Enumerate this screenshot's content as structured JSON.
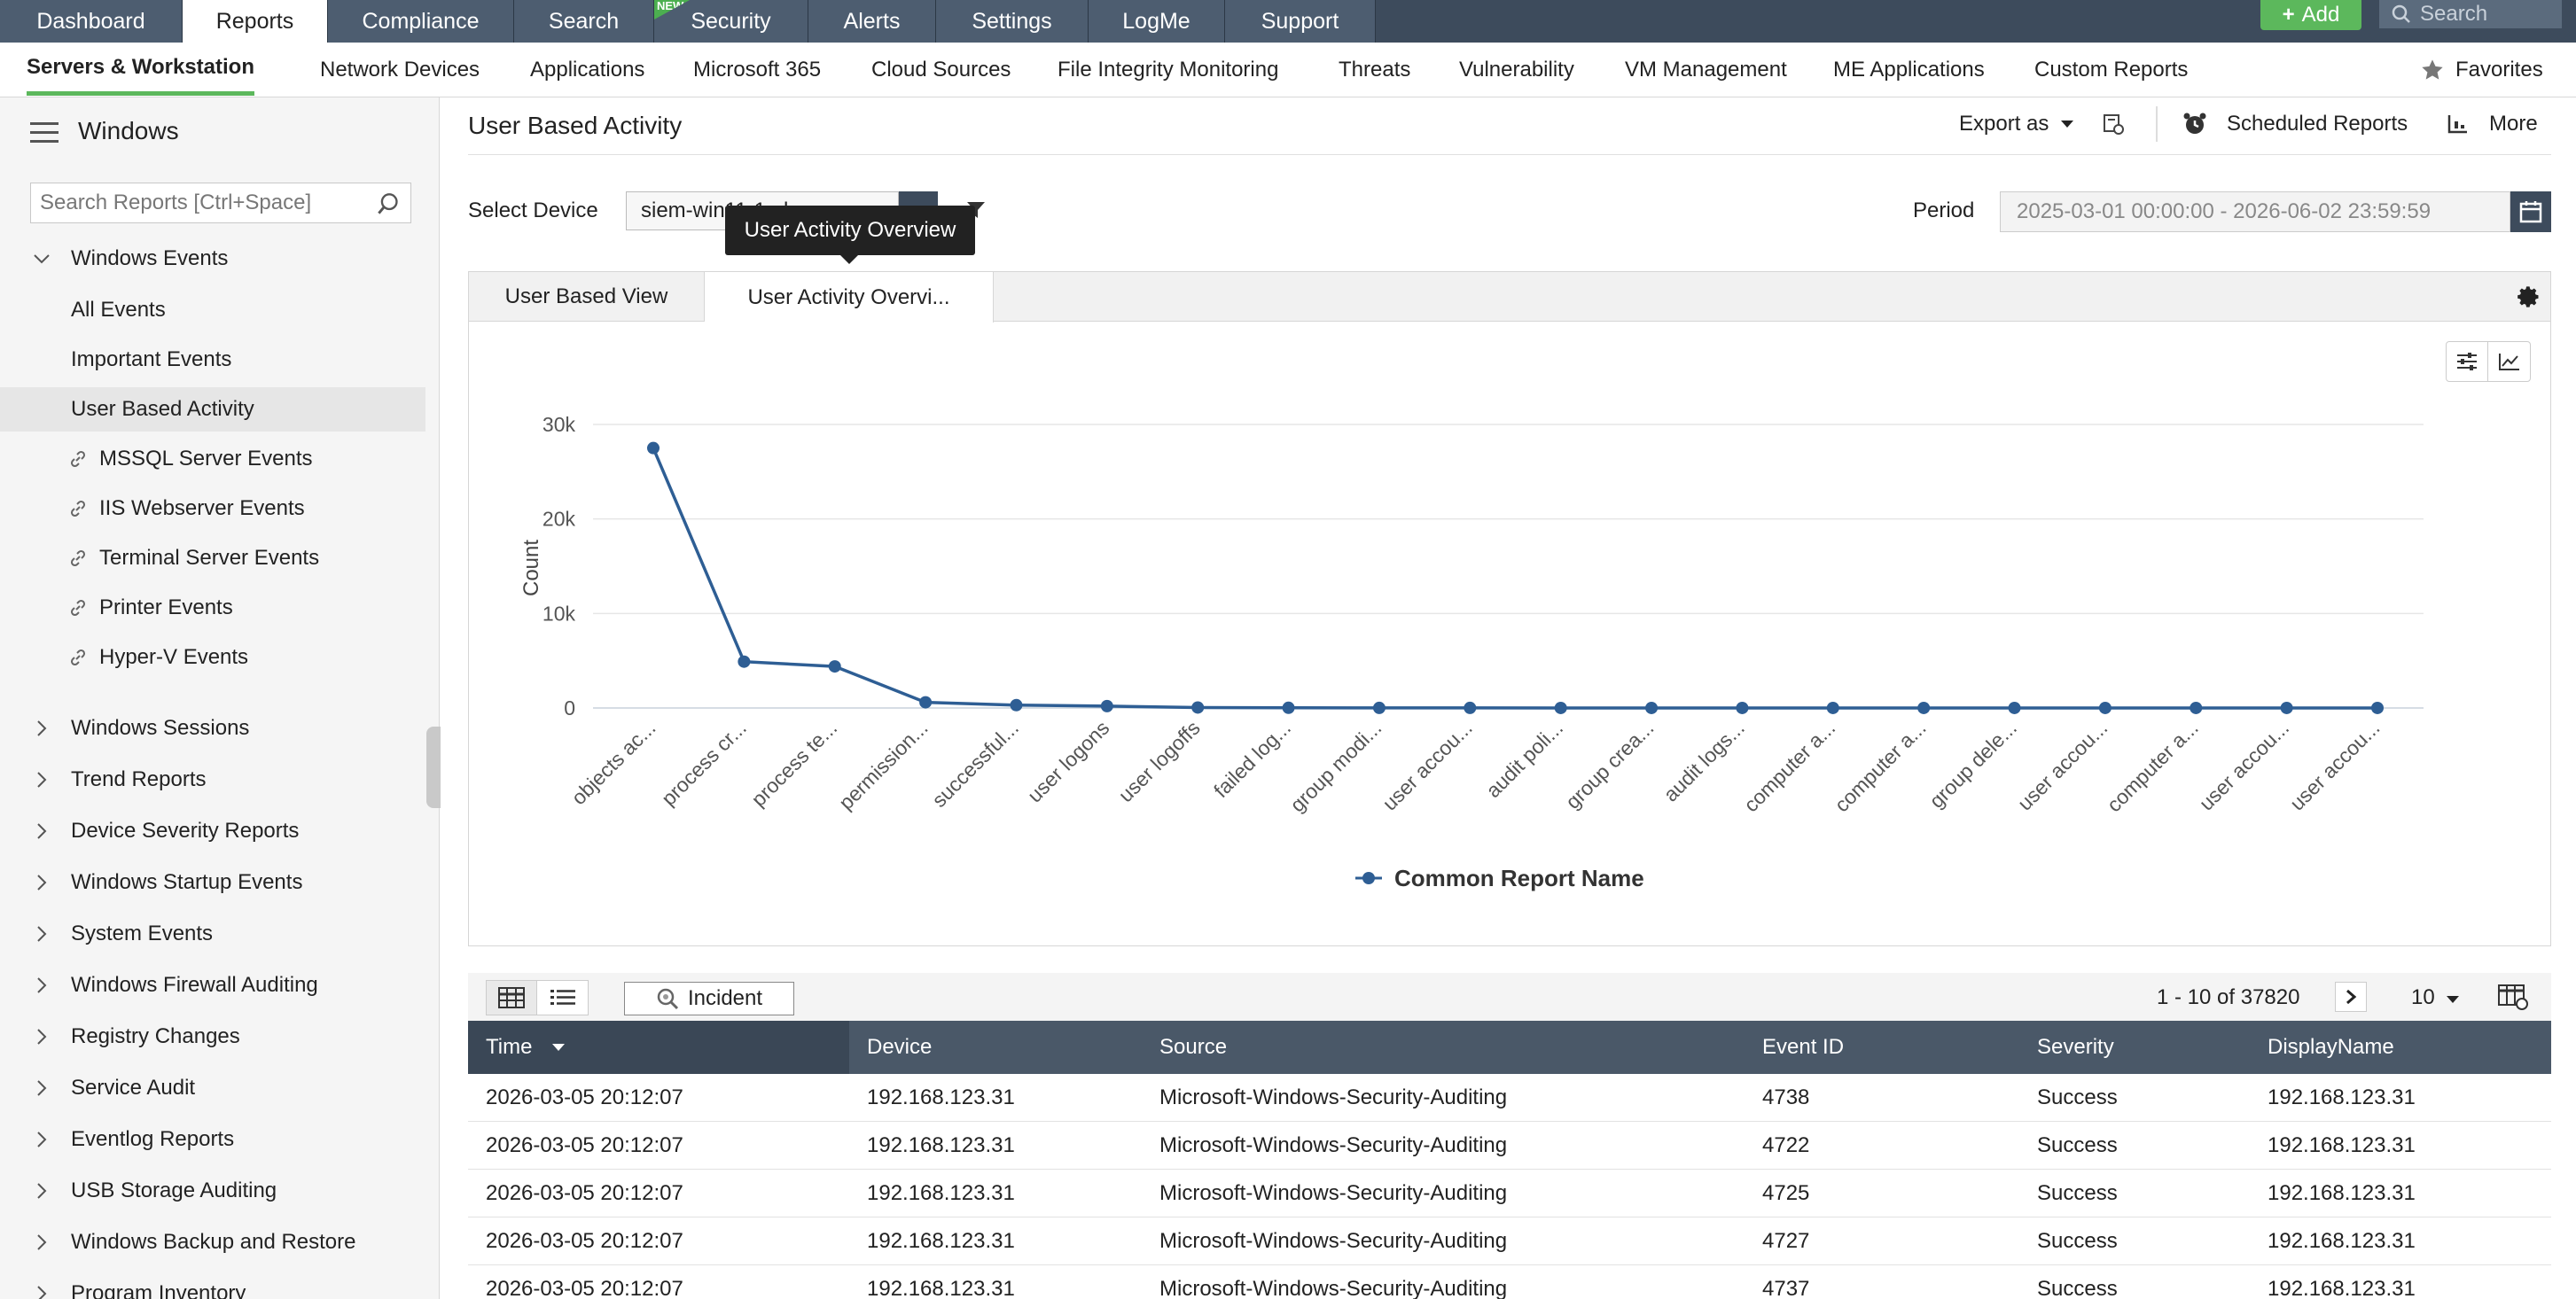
{
  "topnav": {
    "tabs": [
      {
        "label": "Dashboard"
      },
      {
        "label": "Reports"
      },
      {
        "label": "Compliance"
      },
      {
        "label": "Search"
      },
      {
        "label": "Security",
        "badge": "NEW"
      },
      {
        "label": "Alerts"
      },
      {
        "label": "Settings"
      },
      {
        "label": "LogMe"
      },
      {
        "label": "Support"
      }
    ],
    "active_tab": "Reports",
    "add_label": "Add",
    "search_placeholder": "Search"
  },
  "subnav": {
    "items": [
      "Servers & Workstation",
      "Network Devices",
      "Applications",
      "Microsoft 365",
      "Cloud Sources",
      "File Integrity Monitoring",
      "Threats",
      "Vulnerability",
      "VM Management",
      "ME Applications",
      "Custom Reports"
    ],
    "favorites_label": "Favorites"
  },
  "sidebar": {
    "title": "Windows",
    "search_placeholder": "Search Reports [Ctrl+Space]",
    "expanded_group": "Windows Events",
    "children": [
      {
        "label": "All Events",
        "link": false
      },
      {
        "label": "Important Events",
        "link": false
      },
      {
        "label": "User Based Activity",
        "link": false,
        "selected": true
      },
      {
        "label": "MSSQL Server Events",
        "link": true
      },
      {
        "label": "IIS Webserver Events",
        "link": true
      },
      {
        "label": "Terminal Server Events",
        "link": true
      },
      {
        "label": "Printer Events",
        "link": true
      },
      {
        "label": "Hyper-V Events",
        "link": true
      }
    ],
    "groups": [
      "Windows Sessions",
      "Trend Reports",
      "Device Severity Reports",
      "Windows Startup Events",
      "System Events",
      "Windows Firewall Auditing",
      "Registry Changes",
      "Service Audit",
      "Eventlog Reports",
      "USB Storage Auditing",
      "Windows Backup and Restore",
      "Program Inventory"
    ]
  },
  "main": {
    "title": "User Based Activity",
    "export_label": "Export as",
    "scheduled_label": "Scheduled Reports",
    "more_label": "More",
    "device_label": "Select Device",
    "device_value": "siem-win11-1.alnsw...",
    "tooltip": "User Activity Overview",
    "period_label": "Period",
    "period_value": "2025-03-01 00:00:00 - 2026-06-02 23:59:59",
    "tabs": [
      "User Based View",
      "User Activity Overvi..."
    ]
  },
  "chart_data": {
    "type": "line",
    "ylabel": "Count",
    "ylim": [
      0,
      30000
    ],
    "yticks": [
      "0",
      "10k",
      "20k",
      "30k"
    ],
    "categories": [
      "objects ac...",
      "process cr...",
      "process te...",
      "permission...",
      "successful...",
      "user logons",
      "user logoffs",
      "failed log...",
      "group modi...",
      "user accou...",
      "audit poli...",
      "group crea...",
      "audit logs...",
      "computer a...",
      "computer a...",
      "group dele...",
      "user accou...",
      "computer a...",
      "user accou...",
      "user accou..."
    ],
    "series": [
      {
        "name": "Common Report Name",
        "values": [
          27500,
          4900,
          4400,
          600,
          300,
          200,
          50,
          20,
          10,
          10,
          5,
          5,
          5,
          5,
          5,
          5,
          5,
          5,
          5,
          5
        ]
      }
    ],
    "color": "#2e5e94",
    "grid": true,
    "legend": "bottom-center"
  },
  "grid": {
    "incident_label": "Incident",
    "pager": "1 - 10 of 37820",
    "per_page": "10",
    "columns": [
      "Time",
      "Device",
      "Source",
      "Event ID",
      "Severity",
      "DisplayName"
    ],
    "rows": [
      [
        "2026-03-05 20:12:07",
        "192.168.123.31",
        "Microsoft-Windows-Security-Auditing",
        "4738",
        "Success",
        "192.168.123.31"
      ],
      [
        "2026-03-05 20:12:07",
        "192.168.123.31",
        "Microsoft-Windows-Security-Auditing",
        "4722",
        "Success",
        "192.168.123.31"
      ],
      [
        "2026-03-05 20:12:07",
        "192.168.123.31",
        "Microsoft-Windows-Security-Auditing",
        "4725",
        "Success",
        "192.168.123.31"
      ],
      [
        "2026-03-05 20:12:07",
        "192.168.123.31",
        "Microsoft-Windows-Security-Auditing",
        "4727",
        "Success",
        "192.168.123.31"
      ],
      [
        "2026-03-05 20:12:07",
        "192.168.123.31",
        "Microsoft-Windows-Security-Auditing",
        "4737",
        "Success",
        "192.168.123.31"
      ]
    ]
  }
}
